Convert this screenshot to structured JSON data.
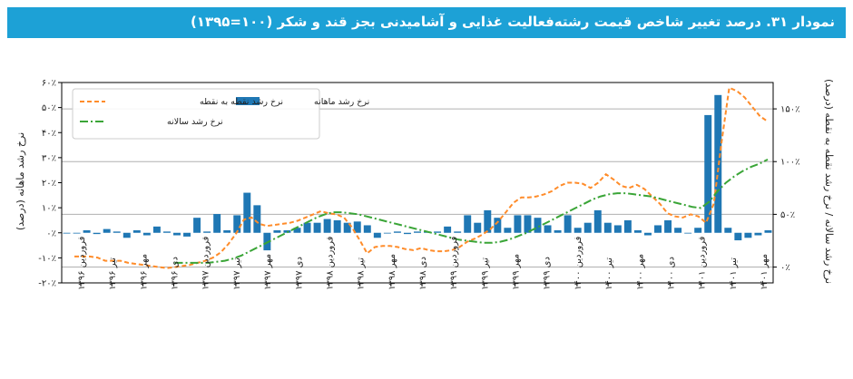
{
  "title": "نمودار ۳۱. درصد تغییر شاخص قیمت رشته‌فعالیت غذایی و آشامیدنی بجز قند و شکر (۱۰۰=۱۳۹۵)",
  "colors": {
    "bar": "#1f77b4",
    "point_line": "#ff8c2a",
    "annual_line": "#3aa537",
    "title_bg": "#1da1d6",
    "grid": "#b0b0b0"
  },
  "chart_data": {
    "type": "bar",
    "left_axis": {
      "label": "نرخ رشد ماهانه (درصد)",
      "ticks": [
        -20,
        -10,
        0,
        10,
        20,
        30,
        40,
        50,
        60
      ],
      "tick_labels": [
        "-۲۰٪",
        "-۱۰٪",
        "۰٪",
        "۱۰٪",
        "۲۰٪",
        "۳۰٪",
        "۴۰٪",
        "۵۰٪",
        "۶۰٪"
      ],
      "ylim": [
        -20,
        60
      ]
    },
    "right_axis": {
      "label": "نرخ رشد سالانه / نرخ رشد نقطه به نقطه (درصد)",
      "ticks": [
        0,
        50,
        100,
        150
      ],
      "tick_labels": [
        "۰٪",
        "۵۰٪",
        "۱۰۰٪",
        "۱۵۰٪"
      ],
      "ylim": [
        -15,
        175
      ]
    },
    "x_tick_labels": [
      "فروردین ۱۳۹۶",
      "تیر ۱۳۹۶",
      "مهر ۱۳۹۶",
      "دی ۱۳۹۶",
      "فروردین ۱۳۹۷",
      "تیر ۱۳۹۷",
      "مهر ۱۳۹۷",
      "دی ۱۳۹۷",
      "فروردین ۱۳۹۸",
      "تیر ۱۳۹۸",
      "مهر ۱۳۹۸",
      "دی ۱۳۹۸",
      "فروردین ۱۳۹۹",
      "تیر ۱۳۹۹",
      "مهر ۱۳۹۹",
      "دی ۱۳۹۹",
      "فروردین ۱۴۰۰",
      "تیر ۱۴۰۰",
      "مهر ۱۴۰۰",
      "دی ۱۴۰۰",
      "فروردین ۱۴۰۱",
      "تیر ۱۴۰۱",
      "مهر ۱۴۰۱"
    ],
    "grid": "horizontal",
    "legend_position": "top-left",
    "series": [
      {
        "name": "نرخ رشد ماهانه",
        "type": "bar",
        "axis": "left",
        "values": [
          0,
          0,
          1,
          -0.5,
          1.5,
          0.5,
          -2,
          1,
          -1,
          2.5,
          0.5,
          -1,
          -1.5,
          6,
          0.5,
          7.5,
          1,
          7,
          16,
          11,
          -7,
          1,
          1,
          2,
          4,
          4,
          5.5,
          5,
          4,
          4.5,
          3,
          -2,
          0,
          0.5,
          -0.5,
          0.5,
          0.5,
          0.5,
          2.5,
          0.5,
          7,
          4,
          9,
          6,
          2,
          7,
          7,
          6,
          3,
          1,
          7,
          2,
          4,
          9,
          4,
          3,
          5,
          1,
          -1,
          3,
          5,
          2,
          0,
          2,
          47,
          55,
          2,
          -3,
          -2,
          -1,
          1
        ]
      },
      {
        "name": "نرخ رشد نقطه به نقطه",
        "type": "line",
        "axis": "right",
        "values": [
          10,
          10,
          10,
          9,
          6,
          6,
          6,
          4,
          3,
          2,
          1,
          0,
          -1,
          0,
          1,
          2,
          4,
          6,
          9,
          14,
          22,
          32,
          45,
          47,
          41,
          39,
          40,
          41,
          42,
          44,
          47,
          50,
          53,
          51,
          50,
          47,
          38,
          26,
          13,
          19,
          20,
          20,
          19,
          17,
          16,
          18,
          16,
          15,
          15,
          16,
          19,
          24,
          27,
          31,
          36,
          43,
          52,
          61,
          66,
          66,
          67,
          69,
          72,
          77,
          80,
          80,
          79,
          75,
          80,
          88,
          83,
          77,
          75,
          78,
          74,
          67,
          60,
          51,
          48,
          47,
          50,
          48,
          42,
          60,
          118,
          170,
          167,
          161,
          152,
          143,
          138
        ]
      },
      {
        "name": "نرخ رشد سالانه",
        "type": "line",
        "axis": "right",
        "values": [
          null,
          null,
          null,
          null,
          null,
          null,
          null,
          null,
          null,
          null,
          null,
          null,
          4,
          4,
          4,
          4,
          4,
          5,
          6,
          8,
          11,
          15,
          19,
          23,
          27,
          31,
          35,
          39,
          43,
          47,
          50,
          52,
          52,
          51,
          50,
          48,
          46,
          44,
          42,
          40,
          38,
          36,
          34,
          32,
          30,
          28,
          26,
          25,
          24,
          23,
          23,
          24,
          26,
          29,
          32,
          36,
          40,
          44,
          48,
          52,
          56,
          60,
          64,
          67,
          69,
          70,
          70,
          69,
          68,
          67,
          65,
          63,
          61,
          59,
          57,
          56,
          62,
          72,
          80,
          86,
          91,
          95,
          98,
          102
        ]
      }
    ]
  }
}
